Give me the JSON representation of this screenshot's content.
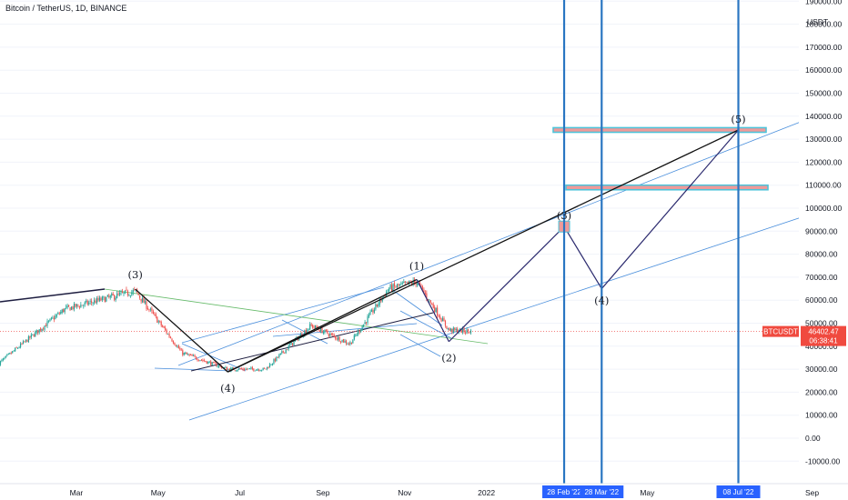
{
  "header": {
    "title": "Bitcoin / TetherUS, 1D, BINANCE",
    "axis_currency": "USDT"
  },
  "colors": {
    "candle_up": "#26a69a",
    "candle_down": "#ef5350",
    "channel_blue": "#4a8fdc",
    "wave_line": "#1e1e40",
    "vertical_marker": "#2a76c2",
    "target_zone_fill": "#ef9a9a",
    "target_zone_border": "#4fc3d9",
    "price_badge": "#f04a3f",
    "date_badge": "#2962ff",
    "green_trend": "#66bb6a"
  },
  "price_axis": {
    "labels": [
      "190000.00",
      "180000.00",
      "170000.00",
      "160000.00",
      "150000.00",
      "140000.00",
      "130000.00",
      "120000.00",
      "110000.00",
      "100000.00",
      "90000.00",
      "80000.00",
      "70000.00",
      "60000.00",
      "50000.00",
      "40000.00",
      "30000.00",
      "20000.00",
      "10000.00",
      "0.00",
      "-10000.00"
    ],
    "symbol_badge": "BTCUSDT",
    "current_price": "46402.47",
    "countdown": "06:38:41"
  },
  "time_axis": {
    "labels": [
      "Mar",
      "May",
      "Jul",
      "Sep",
      "Nov",
      "2022",
      "May",
      "Sep"
    ],
    "markers": [
      "28 Feb '22",
      "28 Mar '22",
      "08 Jul '22"
    ]
  },
  "waves": {
    "labels": [
      "(3)",
      "(4)",
      "(1)",
      "(2)",
      "(3)",
      "(4)",
      "(5)"
    ]
  },
  "chart_data": {
    "type": "candlestick",
    "symbol": "BTCUSDT",
    "interval": "1D",
    "exchange": "BINANCE",
    "ylim": [
      -15000,
      190000
    ],
    "y_ticks": [
      190000,
      180000,
      170000,
      160000,
      150000,
      140000,
      130000,
      120000,
      110000,
      100000,
      90000,
      80000,
      70000,
      60000,
      50000,
      40000,
      30000,
      20000,
      10000,
      0,
      -10000
    ],
    "x_ticks": [
      "Mar",
      "May",
      "Jul",
      "Sep",
      "Nov",
      "2022",
      "May",
      "Sep"
    ],
    "last_price": 46402.47,
    "price_path": [
      {
        "date": "2021-01-01",
        "close": 32000
      },
      {
        "date": "2021-02-20",
        "close": 56000
      },
      {
        "date": "2021-04-14",
        "close": 64000
      },
      {
        "date": "2021-05-19",
        "close": 37000
      },
      {
        "date": "2021-06-22",
        "close": 30000
      },
      {
        "date": "2021-07-20",
        "close": 30000
      },
      {
        "date": "2021-08-23",
        "close": 49000
      },
      {
        "date": "2021-09-21",
        "close": 41000
      },
      {
        "date": "2021-10-20",
        "close": 65000
      },
      {
        "date": "2021-11-10",
        "close": 68000
      },
      {
        "date": "2021-12-04",
        "close": 47000
      },
      {
        "date": "2021-12-21",
        "close": 46402
      }
    ],
    "elliott_waves": [
      {
        "label": "(3)",
        "date": "2021-04-14",
        "price": 64800
      },
      {
        "label": "(4)",
        "date": "2021-06-22",
        "price": 28800
      },
      {
        "label": "(1)",
        "date": "2021-11-10",
        "price": 69000
      },
      {
        "label": "(2)",
        "date": "2021-12-04",
        "price": 42000
      },
      {
        "label": "(3)",
        "date": "2022-02-28",
        "price": 92000
      },
      {
        "label": "(4)",
        "date": "2022-03-28",
        "price": 65000
      },
      {
        "label": "(5)",
        "date": "2022-07-08",
        "price": 134000
      }
    ],
    "target_zones": [
      {
        "low": 133000,
        "high": 135000
      },
      {
        "low": 108000,
        "high": 110000
      }
    ],
    "vertical_markers": [
      "28 Feb '22",
      "28 Mar '22",
      "08 Jul '22"
    ]
  }
}
